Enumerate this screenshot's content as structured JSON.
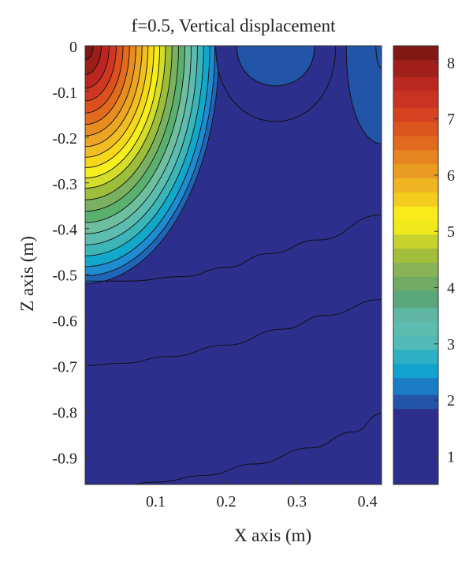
{
  "chart_data": {
    "type": "contour",
    "title": "f=0.5, Vertical displacement",
    "xlabel": "X axis (m)",
    "ylabel": "Z axis (m)",
    "xlim": [
      0,
      0.42
    ],
    "ylim": [
      -0.96,
      0
    ],
    "x_ticks": [
      "0.1",
      "0.2",
      "0.3",
      "0.4"
    ],
    "y_ticks": [
      "0",
      "-0.1",
      "-0.2",
      "-0.3",
      "-0.4",
      "-0.5",
      "-0.6",
      "-0.7",
      "-0.8",
      "-0.9"
    ],
    "colorbar": {
      "range": [
        0.5,
        8.3
      ],
      "ticks": [
        "1",
        "2",
        "3",
        "4",
        "5",
        "6",
        "7",
        "8"
      ],
      "colormap": "jet"
    },
    "background_level": 1.5,
    "contour_lines": [
      {
        "level": 1.75,
        "points": [
          [
            0,
            -0.97
          ],
          [
            0.04,
            -0.965
          ],
          [
            0.1,
            -0.955
          ],
          [
            0.17,
            -0.94
          ],
          [
            0.24,
            -0.915
          ],
          [
            0.32,
            -0.88
          ],
          [
            0.38,
            -0.845
          ],
          [
            0.42,
            -0.805
          ]
        ]
      },
      {
        "level": 1.9,
        "points": [
          [
            0,
            -0.7
          ],
          [
            0.05,
            -0.695
          ],
          [
            0.12,
            -0.68
          ],
          [
            0.2,
            -0.655
          ],
          [
            0.28,
            -0.62
          ],
          [
            0.34,
            -0.59
          ],
          [
            0.42,
            -0.555
          ]
        ]
      },
      {
        "level": 2.05,
        "points": [
          [
            0,
            -0.515
          ],
          [
            0.06,
            -0.515
          ],
          [
            0.14,
            -0.505
          ],
          [
            0.2,
            -0.485
          ],
          [
            0.26,
            -0.455
          ],
          [
            0.33,
            -0.425
          ],
          [
            0.42,
            -0.37
          ]
        ]
      }
    ],
    "source_region": {
      "x_extent": 0.19,
      "z_extent": 0.52,
      "levels": [
        {
          "level": 2,
          "color": "#1f66b8"
        },
        {
          "level": 2.25,
          "color": "#1f8bd0"
        },
        {
          "level": 2.55,
          "color": "#12a8cc"
        },
        {
          "level": 2.9,
          "color": "#3bb5b8"
        },
        {
          "level": 3.25,
          "color": "#5cbcb0"
        },
        {
          "level": 3.6,
          "color": "#6dbfa0"
        },
        {
          "level": 3.95,
          "color": "#5ab06e"
        },
        {
          "level": 4.3,
          "color": "#79b160"
        },
        {
          "level": 4.65,
          "color": "#9cbe3a"
        },
        {
          "level": 5,
          "color": "#d4dd2a"
        },
        {
          "level": 5.3,
          "color": "#f7ef1c"
        },
        {
          "level": 5.6,
          "color": "#f6d81a"
        },
        {
          "level": 5.9,
          "color": "#f0bd22"
        },
        {
          "level": 6.2,
          "color": "#eba522"
        },
        {
          "level": 6.5,
          "color": "#e98c1f"
        },
        {
          "level": 6.8,
          "color": "#e26b1e"
        },
        {
          "level": 7.1,
          "color": "#dd501e"
        },
        {
          "level": 7.4,
          "color": "#cf3722"
        },
        {
          "level": 7.7,
          "color": "#bd2620"
        },
        {
          "level": 8,
          "color": "#9d1d19"
        },
        {
          "level": 8.25,
          "color": "#7e1714"
        }
      ]
    },
    "bumps": [
      {
        "center_x": 0.27,
        "outer": {
          "level": 1.75,
          "half_width": 0.085,
          "depth": 0.17
        },
        "inner": {
          "level": 1.85,
          "half_width": 0.055,
          "depth": 0.09
        }
      },
      {
        "center_x": 0.42,
        "outer": {
          "level": 1.95,
          "half_width": 0.05,
          "depth": 0.22
        },
        "inner": {
          "level": 2.05,
          "half_width": 0.008,
          "depth": 0.05
        }
      }
    ],
    "colorbar_bands": [
      {
        "from": 0.5,
        "to": 1.85,
        "color": "#2c2f8c"
      },
      {
        "from": 1.85,
        "to": 2.1,
        "color": "#2255a8"
      },
      {
        "from": 2.1,
        "to": 2.4,
        "color": "#1a7cc4"
      },
      {
        "from": 2.4,
        "to": 2.65,
        "color": "#12a2d0"
      },
      {
        "from": 2.65,
        "to": 2.9,
        "color": "#2bb0c4"
      },
      {
        "from": 2.9,
        "to": 3.15,
        "color": "#52b9b8"
      },
      {
        "from": 3.15,
        "to": 3.4,
        "color": "#5cbcb0"
      },
      {
        "from": 3.4,
        "to": 3.65,
        "color": "#5fb6a2"
      },
      {
        "from": 3.65,
        "to": 3.95,
        "color": "#5aa879"
      },
      {
        "from": 3.95,
        "to": 4.2,
        "color": "#71ab61"
      },
      {
        "from": 4.2,
        "to": 4.45,
        "color": "#88b357"
      },
      {
        "from": 4.45,
        "to": 4.7,
        "color": "#a2be3b"
      },
      {
        "from": 4.7,
        "to": 4.95,
        "color": "#c7d22e"
      },
      {
        "from": 4.95,
        "to": 5.2,
        "color": "#f0ea1c"
      },
      {
        "from": 5.2,
        "to": 5.45,
        "color": "#f8ea1b"
      },
      {
        "from": 5.45,
        "to": 5.7,
        "color": "#f3cd1e"
      },
      {
        "from": 5.7,
        "to": 5.95,
        "color": "#efb421"
      },
      {
        "from": 5.95,
        "to": 6.2,
        "color": "#ea9c22"
      },
      {
        "from": 6.2,
        "to": 6.45,
        "color": "#e6841f"
      },
      {
        "from": 6.45,
        "to": 6.7,
        "color": "#e06a1e"
      },
      {
        "from": 6.7,
        "to": 6.95,
        "color": "#dc551e"
      },
      {
        "from": 6.95,
        "to": 7.2,
        "color": "#d54320"
      },
      {
        "from": 7.2,
        "to": 7.5,
        "color": "#c93321"
      },
      {
        "from": 7.5,
        "to": 7.75,
        "color": "#bb2821"
      },
      {
        "from": 7.75,
        "to": 8.05,
        "color": "#a11f1b"
      },
      {
        "from": 8.05,
        "to": 8.3,
        "color": "#801814"
      }
    ]
  }
}
